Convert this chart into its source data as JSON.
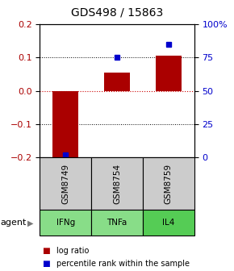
{
  "title": "GDS498 / 15863",
  "samples": [
    "GSM8749",
    "GSM8754",
    "GSM8759"
  ],
  "agents": [
    "IFNg",
    "TNFa",
    "IL4"
  ],
  "log_ratios": [
    -0.205,
    0.055,
    0.105
  ],
  "percentile_ranks": [
    2.0,
    75.0,
    85.0
  ],
  "ylim_left": [
    -0.2,
    0.2
  ],
  "ylim_right": [
    0,
    100
  ],
  "yticks_left": [
    -0.2,
    -0.1,
    0.0,
    0.1,
    0.2
  ],
  "yticks_right": [
    0,
    25,
    50,
    75,
    100
  ],
  "ytick_labels_right": [
    "0",
    "25",
    "50",
    "75",
    "100%"
  ],
  "bar_color": "#AA0000",
  "square_color": "#0000CC",
  "agent_bg_color": "#88DD88",
  "agent_bg_color2": "#55CC55",
  "sample_bg_color": "#CCCCCC",
  "grid_color": "black",
  "zero_line_color": "#CC0000",
  "legend_bar_label": "log ratio",
  "legend_square_label": "percentile rank within the sample",
  "agent_label": "agent",
  "bar_width": 0.5,
  "title_fontsize": 10,
  "tick_fontsize": 8,
  "table_fontsize": 7.5,
  "legend_fontsize": 7
}
